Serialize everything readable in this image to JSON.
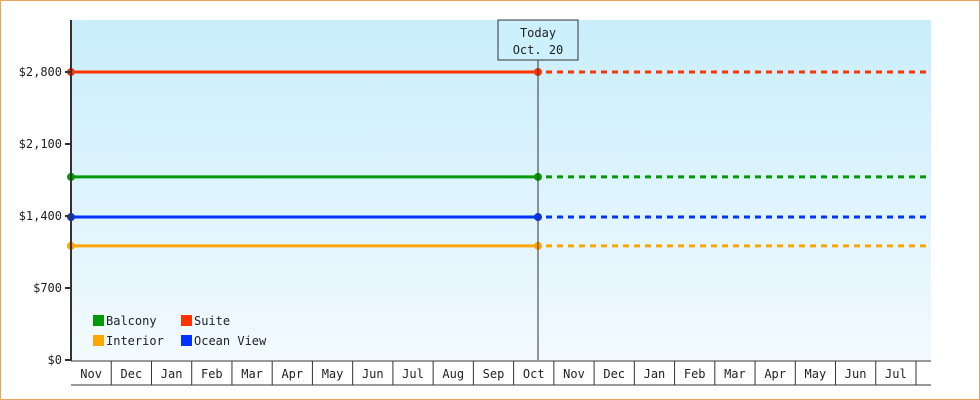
{
  "chart_data": {
    "type": "line",
    "title": "",
    "xlabel": "",
    "ylabel": "",
    "ylim": [
      0,
      3300
    ],
    "y_ticks": [
      0,
      700,
      1400,
      2100,
      2800
    ],
    "y_tick_labels": [
      "$0",
      "$700",
      "$1,400",
      "$2,100",
      "$2,800"
    ],
    "x_tick_labels": [
      "Nov",
      "Dec",
      "Jan",
      "Feb",
      "Mar",
      "Apr",
      "May",
      "Jun",
      "Jul",
      "Aug",
      "Sep",
      "Oct",
      "Nov",
      "Dec",
      "Jan",
      "Feb",
      "Mar",
      "Apr",
      "May",
      "Jun",
      "Jul"
    ],
    "grid": false,
    "legend_position": "bottom-left",
    "today": {
      "label": "Today",
      "date": "Oct. 20"
    },
    "series": [
      {
        "name": "Suite",
        "color": "#ff3300",
        "value": 2800
      },
      {
        "name": "Balcony",
        "color": "#009900",
        "value": 1780
      },
      {
        "name": "Ocean View",
        "color": "#0033ff",
        "value": 1390
      },
      {
        "name": "Interior",
        "color": "#ffa500",
        "value": 1110
      }
    ],
    "legend_order": [
      "Balcony",
      "Suite",
      "Interior",
      "Ocean View"
    ],
    "note_style": "solid line up to today, dotted projection after"
  }
}
